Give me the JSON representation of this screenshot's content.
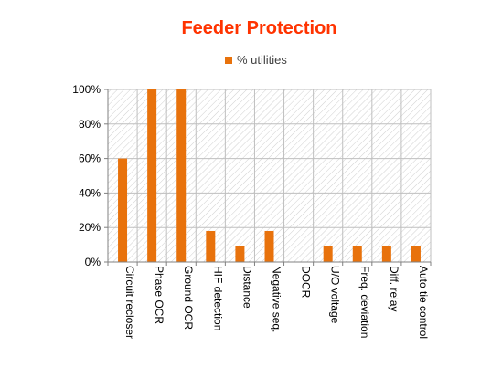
{
  "chart_data": {
    "type": "bar",
    "title": "Feeder Protection",
    "categories": [
      "Circuit recloser",
      "Phase OCR",
      "Ground OCR",
      "HIF detection",
      "Distance",
      "Negative seq.",
      "DOCR",
      "U/O voltage",
      "Freq. deviation",
      "Diff. relay",
      "Auto tie control"
    ],
    "series": [
      {
        "name": "% utilities",
        "values": [
          60,
          100,
          100,
          18,
          9,
          18,
          0,
          9,
          9,
          9,
          9
        ]
      }
    ],
    "ylim": [
      0,
      100
    ],
    "yticks": [
      0,
      20,
      40,
      60,
      80,
      100
    ],
    "ytick_labels": [
      "0%",
      "20%",
      "40%",
      "60%",
      "80%",
      "100%"
    ],
    "xlabel": "",
    "ylabel": "",
    "legend_position": "top",
    "grid": true,
    "colors": {
      "title": "#ff3300",
      "bar": "#e8720c",
      "axis": "#808080",
      "grid": "#bfbfbf",
      "hatch": "#d0d0d0"
    }
  }
}
